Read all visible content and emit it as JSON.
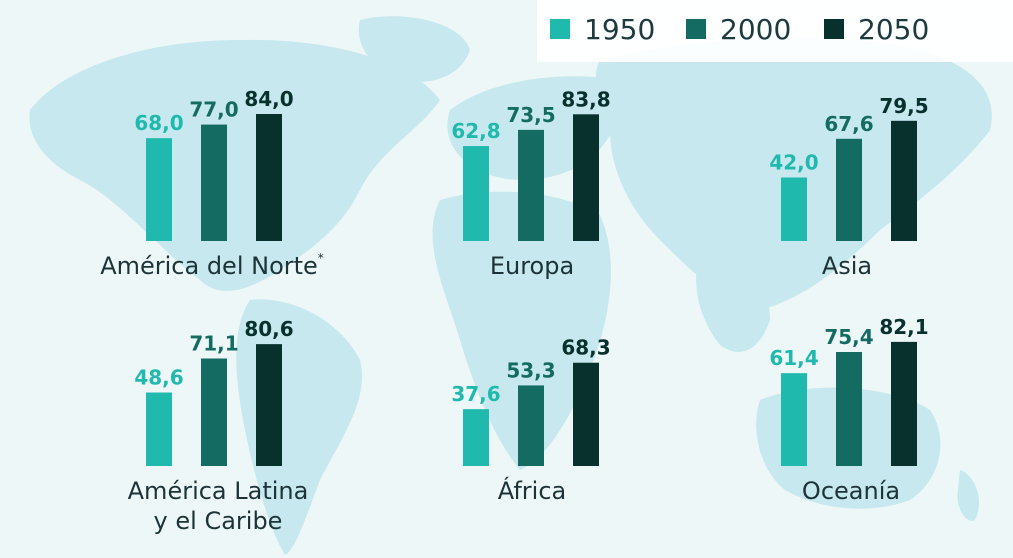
{
  "chart_data": {
    "type": "bar",
    "legend": {
      "position": "top-right"
    },
    "series": [
      {
        "name": "1950",
        "color": "#20b9ad"
      },
      {
        "name": "2000",
        "color": "#136b62"
      },
      {
        "name": "2050",
        "color": "#08302d"
      }
    ],
    "ylim": [
      0,
      90
    ],
    "groups": [
      {
        "label": "América del Norte",
        "label_mark": "*",
        "values": [
          68.0,
          77.0,
          84.0
        ],
        "value_labels": [
          "68,0",
          "77,0",
          "84,0"
        ]
      },
      {
        "label": "Europa",
        "values": [
          62.8,
          73.5,
          83.8
        ],
        "value_labels": [
          "62,8",
          "73,5",
          "83,8"
        ]
      },
      {
        "label": "Asia",
        "values": [
          42.0,
          67.6,
          79.5
        ],
        "value_labels": [
          "42,0",
          "67,6",
          "79,5"
        ]
      },
      {
        "label": "América Latina y el Caribe",
        "label_lines": [
          "América Latina",
          "y el Caribe"
        ],
        "values": [
          48.6,
          71.1,
          80.6
        ],
        "value_labels": [
          "48,6",
          "71,1",
          "80,6"
        ]
      },
      {
        "label": "África",
        "values": [
          37.6,
          53.3,
          68.3
        ],
        "value_labels": [
          "37,6",
          "53,3",
          "68,3"
        ]
      },
      {
        "label": "Oceanía",
        "values": [
          61.4,
          75.4,
          82.1
        ],
        "value_labels": [
          "61,4",
          "75,4",
          "82,1"
        ]
      }
    ]
  }
}
